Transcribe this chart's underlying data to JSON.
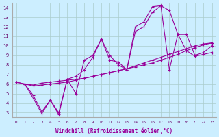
{
  "xlabel": "Windchill (Refroidissement éolien,°C)",
  "bg_color": "#cceeff",
  "line_color": "#990099",
  "grid_color": "#aacccc",
  "xlim": [
    -0.5,
    23.5
  ],
  "ylim": [
    2.5,
    14.5
  ],
  "xticks": [
    0,
    1,
    2,
    3,
    4,
    5,
    6,
    7,
    8,
    9,
    10,
    11,
    12,
    13,
    14,
    15,
    16,
    17,
    18,
    19,
    20,
    21,
    22,
    23
  ],
  "yticks": [
    3,
    4,
    5,
    6,
    7,
    8,
    9,
    10,
    11,
    12,
    13,
    14
  ],
  "series": [
    {
      "x": [
        0,
        1,
        2,
        3,
        4,
        5,
        6,
        7,
        8,
        9,
        10,
        11,
        12,
        13,
        14,
        15,
        16,
        17,
        18,
        19,
        20,
        21,
        22,
        23
      ],
      "y": [
        6.2,
        6.0,
        5.9,
        6.1,
        6.2,
        6.3,
        6.4,
        6.5,
        6.6,
        6.8,
        7.0,
        7.2,
        7.4,
        7.6,
        7.8,
        8.0,
        8.2,
        8.5,
        8.8,
        9.1,
        9.5,
        9.8,
        10.1,
        10.3
      ]
    },
    {
      "x": [
        0,
        1,
        2,
        3,
        4,
        5,
        6,
        7,
        8,
        9,
        10,
        11,
        12,
        13,
        14,
        15,
        16,
        17,
        18,
        19,
        20,
        21,
        22,
        23
      ],
      "y": [
        6.2,
        6.0,
        5.8,
        5.9,
        6.0,
        6.1,
        6.2,
        6.4,
        6.6,
        6.8,
        7.0,
        7.2,
        7.4,
        7.6,
        7.9,
        8.2,
        8.5,
        8.8,
        9.1,
        9.4,
        9.7,
        10.0,
        10.2,
        10.3
      ]
    },
    {
      "x": [
        1,
        2,
        3,
        4,
        5,
        6,
        7,
        8,
        9,
        10,
        11,
        12,
        13,
        14,
        15,
        16,
        17,
        18,
        19,
        20,
        21,
        22,
        23
      ],
      "y": [
        6.0,
        4.8,
        3.1,
        4.3,
        3.0,
        6.5,
        6.8,
        7.5,
        8.8,
        10.7,
        8.5,
        8.3,
        7.5,
        11.5,
        12.0,
        13.5,
        14.2,
        13.7,
        11.2,
        9.5,
        8.9,
        9.1,
        9.3
      ]
    },
    {
      "x": [
        1,
        2,
        3,
        4,
        5,
        6,
        7,
        8,
        9,
        10,
        11,
        12,
        13,
        14,
        15,
        16,
        17,
        18,
        19,
        20,
        21,
        22,
        23
      ],
      "y": [
        6.0,
        4.5,
        2.9,
        4.3,
        2.8,
        6.5,
        5.0,
        8.5,
        9.0,
        10.7,
        9.0,
        8.0,
        7.5,
        12.0,
        12.5,
        14.1,
        14.2,
        7.5,
        11.2,
        11.2,
        9.0,
        9.3,
        10.0
      ]
    }
  ]
}
